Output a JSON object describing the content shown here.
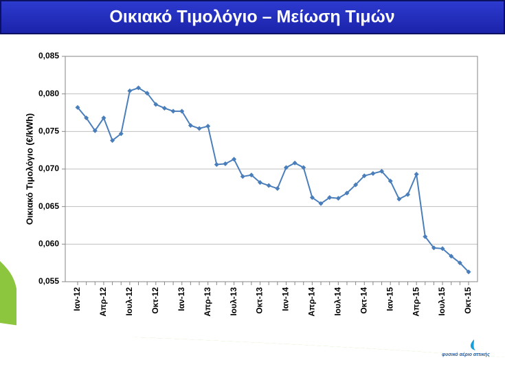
{
  "chart_data": {
    "type": "line",
    "title": "Οικιακό Τιμολόγιο – Μείωση Τιμών",
    "y_label": "Οικιακό Τιμολόγιο (€/kWh)",
    "categories": [
      "Ιαν-12",
      null,
      null,
      "Απρ-12",
      null,
      null,
      "Ιουλ-12",
      null,
      null,
      "Οκτ-12",
      null,
      null,
      "Ιαν-13",
      null,
      null,
      "Απρ-13",
      null,
      null,
      "Ιουλ-13",
      null,
      null,
      "Οκτ-13",
      null,
      null,
      "Ιαν-14",
      null,
      null,
      "Απρ-14",
      null,
      null,
      "Ιουλ-14",
      null,
      null,
      "Οκτ-14",
      null,
      null,
      "Ιαν-15",
      null,
      null,
      "Απρ-15",
      null,
      null,
      "Ιουλ-15",
      null,
      null,
      "Οκτ-15"
    ],
    "series": [
      {
        "color": "#4a7ebb",
        "values": [
          0.0782,
          0.0768,
          0.0751,
          0.0768,
          0.0738,
          0.0747,
          0.0804,
          0.0808,
          0.0801,
          0.0786,
          0.0781,
          0.0777,
          0.0777,
          0.0758,
          0.0754,
          0.0757,
          0.0706,
          0.0707,
          0.0713,
          0.069,
          0.0692,
          0.0682,
          0.0678,
          0.0674,
          0.0702,
          0.0708,
          0.0702,
          0.0662,
          0.0654,
          0.0662,
          0.0661,
          0.0668,
          0.0679,
          0.0691,
          0.0694,
          0.0697,
          0.0684,
          0.066,
          0.0666,
          0.0693,
          0.061,
          0.0595,
          0.0594,
          0.0584,
          0.0575,
          0.0563
        ]
      }
    ],
    "ylim": [
      0.055,
      0.085
    ],
    "yticks": [
      {
        "value": 0.055,
        "label": "0,055"
      },
      {
        "value": 0.06,
        "label": "0,060"
      },
      {
        "value": 0.065,
        "label": "0,065"
      },
      {
        "value": 0.07,
        "label": "0,070"
      },
      {
        "value": 0.075,
        "label": "0,075"
      },
      {
        "value": 0.08,
        "label": "0,080"
      },
      {
        "value": 0.085,
        "label": "0,085"
      }
    ],
    "grid": true
  },
  "logo": {
    "text": "φυσικό αέριο αττικής"
  }
}
